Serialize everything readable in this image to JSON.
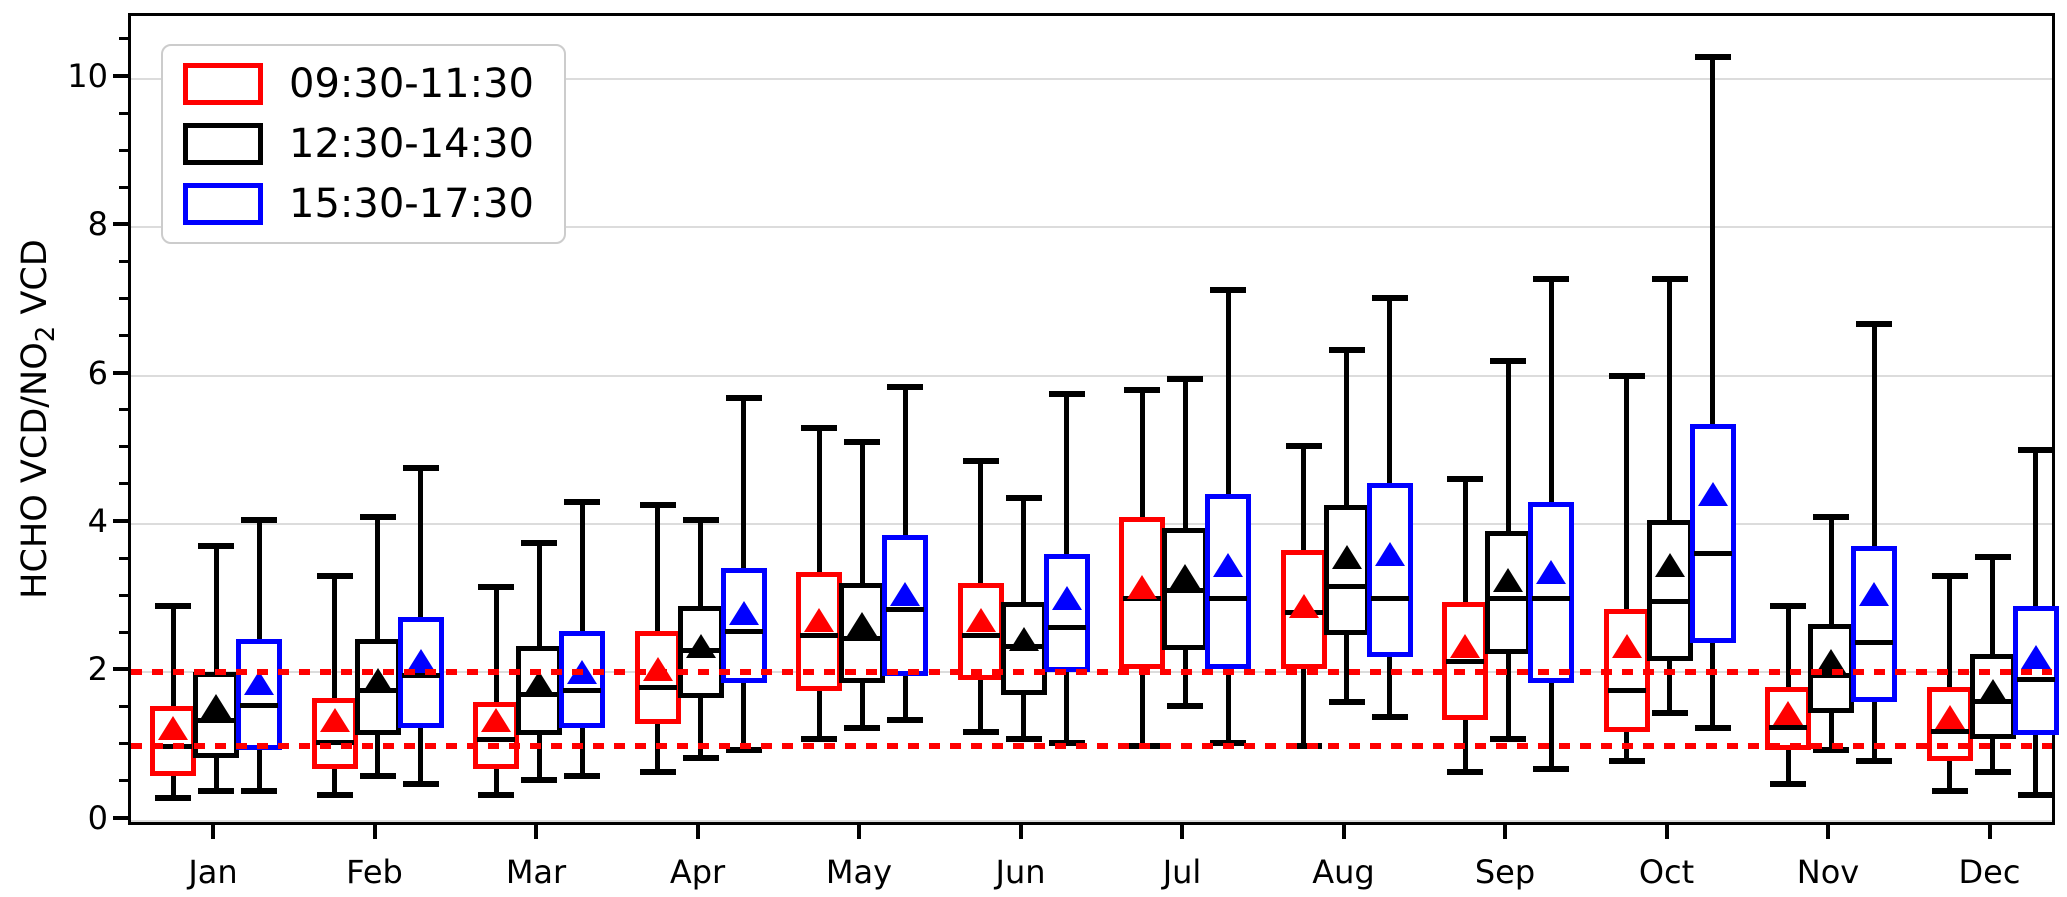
{
  "ylabel": {
    "prefix": "HCHO VCD/NO",
    "sub": "2",
    "suffix": " VCD"
  },
  "legend": {
    "items": [
      {
        "label": "09:30-11:30",
        "color": "#ff0000"
      },
      {
        "label": "12:30-14:30",
        "color": "#000000"
      },
      {
        "label": "15:30-17:30",
        "color": "#0000ff"
      }
    ]
  },
  "chart_data": {
    "type": "boxplot",
    "title": "",
    "xlabel": "",
    "ylabel": "HCHO VCD/NO2 VCD",
    "categories": [
      "Jan",
      "Feb",
      "Mar",
      "Apr",
      "May",
      "Jun",
      "Jul",
      "Aug",
      "Sep",
      "Oct",
      "Nov",
      "Dec"
    ],
    "yticks": [
      0,
      2,
      4,
      6,
      8,
      10
    ],
    "ylim": [
      -0.1,
      10.85
    ],
    "grid": "horizontal light-gray lines at yticks",
    "legend_position": "upper left",
    "marker_note": "filled triangle = mean value",
    "reference_lines": {
      "values": [
        1.0,
        2.0
      ],
      "color": "#ff0000",
      "style": "dotted"
    },
    "series": [
      {
        "name": "09:30-11:30",
        "color": "#ff0000",
        "boxes": [
          {
            "whisker_low": 0.3,
            "q1": 0.6,
            "median": 1.0,
            "q3": 1.55,
            "whisker_high": 2.9,
            "mean": 1.25
          },
          {
            "whisker_low": 0.35,
            "q1": 0.7,
            "median": 1.05,
            "q3": 1.65,
            "whisker_high": 3.3,
            "mean": 1.35
          },
          {
            "whisker_low": 0.35,
            "q1": 0.7,
            "median": 1.1,
            "q3": 1.6,
            "whisker_high": 3.15,
            "mean": 1.35
          },
          {
            "whisker_low": 0.65,
            "q1": 1.3,
            "median": 1.8,
            "q3": 2.55,
            "whisker_high": 4.25,
            "mean": 2.05
          },
          {
            "whisker_low": 1.1,
            "q1": 1.75,
            "median": 2.5,
            "q3": 3.35,
            "whisker_high": 5.3,
            "mean": 2.7
          },
          {
            "whisker_low": 1.2,
            "q1": 1.9,
            "median": 2.5,
            "q3": 3.2,
            "whisker_high": 4.85,
            "mean": 2.7
          },
          {
            "whisker_low": 1.0,
            "q1": 2.05,
            "median": 3.0,
            "q3": 4.1,
            "whisker_high": 5.8,
            "mean": 3.15
          },
          {
            "whisker_low": 1.0,
            "q1": 2.05,
            "median": 2.8,
            "q3": 3.65,
            "whisker_high": 5.05,
            "mean": 2.9
          },
          {
            "whisker_low": 0.65,
            "q1": 1.35,
            "median": 2.15,
            "q3": 2.95,
            "whisker_high": 4.6,
            "mean": 2.35
          },
          {
            "whisker_low": 0.8,
            "q1": 1.2,
            "median": 1.75,
            "q3": 2.85,
            "whisker_high": 6.0,
            "mean": 2.35
          },
          {
            "whisker_low": 0.5,
            "q1": 0.95,
            "median": 1.25,
            "q3": 1.8,
            "whisker_high": 2.9,
            "mean": 1.45
          },
          {
            "whisker_low": 0.4,
            "q1": 0.8,
            "median": 1.2,
            "q3": 1.8,
            "whisker_high": 3.3,
            "mean": 1.4
          }
        ]
      },
      {
        "name": "12:30-14:30",
        "color": "#000000",
        "boxes": [
          {
            "whisker_low": 0.4,
            "q1": 0.85,
            "median": 1.35,
            "q3": 2.0,
            "whisker_high": 3.7,
            "mean": 1.55
          },
          {
            "whisker_low": 0.6,
            "q1": 1.15,
            "median": 1.75,
            "q3": 2.45,
            "whisker_high": 4.1,
            "mean": 1.9
          },
          {
            "whisker_low": 0.55,
            "q1": 1.15,
            "median": 1.7,
            "q3": 2.35,
            "whisker_high": 3.75,
            "mean": 1.85
          },
          {
            "whisker_low": 0.85,
            "q1": 1.65,
            "median": 2.3,
            "q3": 2.9,
            "whisker_high": 4.05,
            "mean": 2.35
          },
          {
            "whisker_low": 1.25,
            "q1": 1.85,
            "median": 2.45,
            "q3": 3.2,
            "whisker_high": 5.1,
            "mean": 2.65
          },
          {
            "whisker_low": 1.1,
            "q1": 1.7,
            "median": 2.35,
            "q3": 2.95,
            "whisker_high": 4.35,
            "mean": 2.45
          },
          {
            "whisker_low": 1.55,
            "q1": 2.3,
            "median": 3.1,
            "q3": 3.95,
            "whisker_high": 5.95,
            "mean": 3.3
          },
          {
            "whisker_low": 1.6,
            "q1": 2.5,
            "median": 3.15,
            "q3": 4.25,
            "whisker_high": 6.35,
            "mean": 3.55
          },
          {
            "whisker_low": 1.1,
            "q1": 2.25,
            "median": 3.0,
            "q3": 3.9,
            "whisker_high": 6.2,
            "mean": 3.25
          },
          {
            "whisker_low": 1.45,
            "q1": 2.15,
            "median": 2.95,
            "q3": 4.05,
            "whisker_high": 7.3,
            "mean": 3.45
          },
          {
            "whisker_low": 0.95,
            "q1": 1.45,
            "median": 1.95,
            "q3": 2.65,
            "whisker_high": 4.1,
            "mean": 2.15
          },
          {
            "whisker_low": 0.65,
            "q1": 1.1,
            "median": 1.6,
            "q3": 2.25,
            "whisker_high": 3.55,
            "mean": 1.75
          }
        ]
      },
      {
        "name": "15:30-17:30",
        "color": "#0000ff",
        "boxes": [
          {
            "whisker_low": 0.4,
            "q1": 0.95,
            "median": 1.55,
            "q3": 2.45,
            "whisker_high": 4.05,
            "mean": 1.85
          },
          {
            "whisker_low": 0.5,
            "q1": 1.25,
            "median": 1.95,
            "q3": 2.75,
            "whisker_high": 4.75,
            "mean": 2.15
          },
          {
            "whisker_low": 0.6,
            "q1": 1.25,
            "median": 1.75,
            "q3": 2.55,
            "whisker_high": 4.3,
            "mean": 2.0
          },
          {
            "whisker_low": 0.95,
            "q1": 1.85,
            "median": 2.55,
            "q3": 3.4,
            "whisker_high": 5.7,
            "mean": 2.8
          },
          {
            "whisker_low": 1.35,
            "q1": 1.95,
            "median": 2.85,
            "q3": 3.85,
            "whisker_high": 5.85,
            "mean": 3.05
          },
          {
            "whisker_low": 1.05,
            "q1": 2.0,
            "median": 2.6,
            "q3": 3.6,
            "whisker_high": 5.75,
            "mean": 3.0
          },
          {
            "whisker_low": 1.05,
            "q1": 2.05,
            "median": 3.0,
            "q3": 4.4,
            "whisker_high": 7.15,
            "mean": 3.45
          },
          {
            "whisker_low": 1.4,
            "q1": 2.2,
            "median": 3.0,
            "q3": 4.55,
            "whisker_high": 7.05,
            "mean": 3.6
          },
          {
            "whisker_low": 0.7,
            "q1": 1.85,
            "median": 3.0,
            "q3": 4.3,
            "whisker_high": 7.3,
            "mean": 3.35
          },
          {
            "whisker_low": 1.25,
            "q1": 2.4,
            "median": 3.6,
            "q3": 5.35,
            "whisker_high": 10.3,
            "mean": 4.4
          },
          {
            "whisker_low": 0.8,
            "q1": 1.6,
            "median": 2.4,
            "q3": 3.7,
            "whisker_high": 6.7,
            "mean": 3.05
          },
          {
            "whisker_low": 0.35,
            "q1": 1.15,
            "median": 1.9,
            "q3": 2.9,
            "whisker_high": 5.0,
            "mean": 2.2
          }
        ]
      }
    ]
  }
}
